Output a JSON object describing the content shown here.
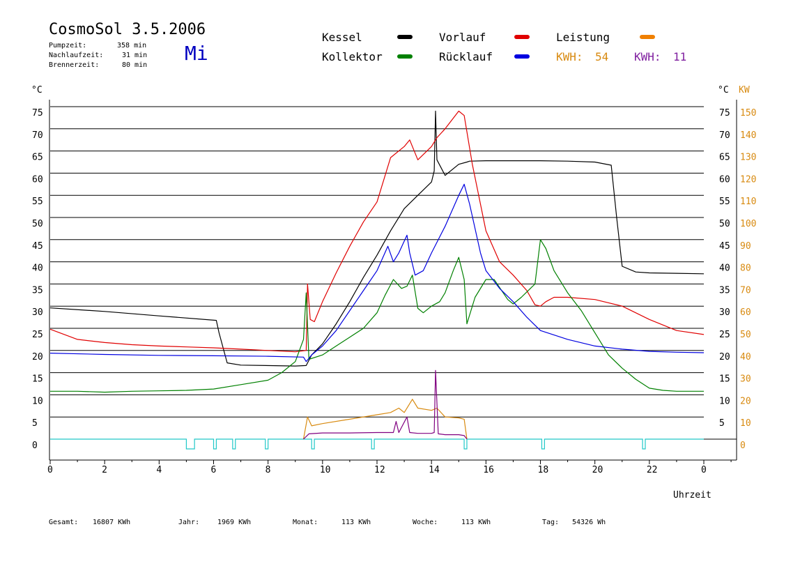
{
  "header": {
    "title": "CosmoSol 3.5.2006",
    "weekday": "Mi",
    "stats": [
      {
        "label": "Pumpzeit:",
        "value": "358 min"
      },
      {
        "label": "Nachlaufzeit:",
        "value": "31 min"
      },
      {
        "label": "Brennerzeit:",
        "value": "80 min"
      }
    ]
  },
  "legend": {
    "items": [
      {
        "label": "Kessel",
        "color": "#000000"
      },
      {
        "label": "Vorlauf",
        "color": "#e00000"
      },
      {
        "label": "Leistung",
        "color": "#f08000"
      },
      {
        "label": "Kollektor",
        "color": "#008000"
      },
      {
        "label": "Rücklauf",
        "color": "#0000e0"
      }
    ],
    "kwh": [
      {
        "label": "KWH:",
        "value": "54",
        "color": "#d88a10"
      },
      {
        "label": "KWH:",
        "value": "11",
        "color": "#8020a0"
      }
    ]
  },
  "footer": {
    "items": [
      {
        "label": "Gesamt:",
        "value": "16807 KWh"
      },
      {
        "label": "Jahr:",
        "value": "1969 KWh"
      },
      {
        "label": "Monat:",
        "value": "113 KWh"
      },
      {
        "label": "Woche:",
        "value": "113 KWh"
      },
      {
        "label": "Tag:",
        "value": "54326 Wh"
      }
    ]
  },
  "chart_data": {
    "type": "line",
    "xlabel": "Uhrzeit",
    "ylabel_left": "°C",
    "ylabel_right": "°C",
    "ylabel_right2": "KW",
    "xlim": [
      0,
      24
    ],
    "ylim": [
      0,
      75
    ],
    "grid": true,
    "x_ticks": [
      "0",
      "2",
      "4",
      "6",
      "8",
      "10",
      "12",
      "14",
      "16",
      "18",
      "20",
      "22",
      "0"
    ],
    "y_ticks_left": [
      "0",
      "5",
      "10",
      "15",
      "20",
      "25",
      "30",
      "35",
      "40",
      "45",
      "50",
      "55",
      "60",
      "65",
      "70",
      "75"
    ],
    "y_ticks_right": [
      "",
      "5",
      "10",
      "15",
      "20",
      "25",
      "30",
      "35",
      "40",
      "45",
      "50",
      "55",
      "60",
      "65",
      "70",
      "75"
    ],
    "y_ticks_kw": [
      "0",
      "10",
      "20",
      "30",
      "40",
      "50",
      "60",
      "70",
      "80",
      "90",
      "100",
      "110",
      "120",
      "130",
      "140",
      "150"
    ],
    "series": [
      {
        "name": "Kessel",
        "color": "#000000",
        "points": [
          [
            0,
            29.6
          ],
          [
            2,
            28.8
          ],
          [
            4,
            27.8
          ],
          [
            6.1,
            26.8
          ],
          [
            6.2,
            24
          ],
          [
            6.5,
            17.2
          ],
          [
            7,
            16.7
          ],
          [
            9,
            16.5
          ],
          [
            9.4,
            16.6
          ],
          [
            9.6,
            19
          ],
          [
            10,
            21.5
          ],
          [
            10.5,
            26
          ],
          [
            11,
            31
          ],
          [
            11.5,
            36.5
          ],
          [
            12,
            41.5
          ],
          [
            12.5,
            47
          ],
          [
            13,
            52
          ],
          [
            13.5,
            55
          ],
          [
            14,
            58
          ],
          [
            14.1,
            60.5
          ],
          [
            14.15,
            74
          ],
          [
            14.2,
            63
          ],
          [
            14.5,
            59.5
          ],
          [
            15,
            62
          ],
          [
            15.3,
            62.5
          ],
          [
            15.4,
            62.7
          ],
          [
            16,
            62.8
          ],
          [
            17,
            62.8
          ],
          [
            18,
            62.8
          ],
          [
            19,
            62.7
          ],
          [
            20,
            62.5
          ],
          [
            20.6,
            61.8
          ],
          [
            20.8,
            50
          ],
          [
            21,
            39
          ],
          [
            21.5,
            37.7
          ],
          [
            22,
            37.5
          ],
          [
            23,
            37.4
          ],
          [
            24,
            37.3
          ]
        ]
      },
      {
        "name": "Vorlauf",
        "color": "#e00000",
        "points": [
          [
            0,
            24.8
          ],
          [
            1,
            22.5
          ],
          [
            2,
            21.8
          ],
          [
            3,
            21.3
          ],
          [
            4,
            21
          ],
          [
            5,
            20.8
          ],
          [
            6,
            20.6
          ],
          [
            7,
            20.3
          ],
          [
            8,
            20
          ],
          [
            9,
            19.7
          ],
          [
            9.4,
            20
          ],
          [
            9.45,
            35
          ],
          [
            9.55,
            27
          ],
          [
            9.7,
            26.5
          ],
          [
            10,
            31
          ],
          [
            10.5,
            37.5
          ],
          [
            11,
            43.5
          ],
          [
            11.5,
            49
          ],
          [
            12,
            53.5
          ],
          [
            12.5,
            63.5
          ],
          [
            13,
            66
          ],
          [
            13.2,
            67.5
          ],
          [
            13.5,
            63
          ],
          [
            14,
            66
          ],
          [
            14.2,
            68
          ],
          [
            14.5,
            70
          ],
          [
            15,
            74
          ],
          [
            15.2,
            73
          ],
          [
            15.5,
            62
          ],
          [
            16,
            47
          ],
          [
            16.5,
            40
          ],
          [
            17,
            37
          ],
          [
            17.5,
            33.5
          ],
          [
            17.8,
            30.3
          ],
          [
            18,
            30
          ],
          [
            18.2,
            31
          ],
          [
            18.5,
            32
          ],
          [
            19,
            32
          ],
          [
            20,
            31.5
          ],
          [
            21,
            30
          ],
          [
            22,
            27
          ],
          [
            23,
            24.5
          ],
          [
            24,
            23.6
          ]
        ]
      },
      {
        "name": "Leistung",
        "color": "#d88a10",
        "points": [
          [
            9.3,
            0
          ],
          [
            9.45,
            5
          ],
          [
            9.6,
            3
          ],
          [
            10,
            3.5
          ],
          [
            11,
            4.5
          ],
          [
            12,
            5.5
          ],
          [
            12.5,
            6
          ],
          [
            12.8,
            7
          ],
          [
            13,
            6
          ],
          [
            13.3,
            9
          ],
          [
            13.5,
            7
          ],
          [
            14,
            6.5
          ],
          [
            14.2,
            7
          ],
          [
            14.5,
            5
          ],
          [
            15,
            4.8
          ],
          [
            15.2,
            4.5
          ],
          [
            15.3,
            0
          ]
        ]
      },
      {
        "name": "",
        "color": "#800080",
        "points": [
          [
            9.3,
            0
          ],
          [
            9.5,
            1.2
          ],
          [
            10,
            1.4
          ],
          [
            11,
            1.4
          ],
          [
            12,
            1.5
          ],
          [
            12.6,
            1.5
          ],
          [
            12.7,
            4
          ],
          [
            12.8,
            1.5
          ],
          [
            13.1,
            5
          ],
          [
            13.2,
            1.5
          ],
          [
            13.5,
            1.3
          ],
          [
            14,
            1.3
          ],
          [
            14.1,
            1.5
          ],
          [
            14.15,
            15.5
          ],
          [
            14.25,
            1.2
          ],
          [
            14.5,
            1
          ],
          [
            15,
            1
          ],
          [
            15.2,
            0.8
          ],
          [
            15.3,
            0
          ]
        ]
      },
      {
        "name": "Kollektor",
        "color": "#008000",
        "points": [
          [
            0,
            10.8
          ],
          [
            1,
            10.8
          ],
          [
            2,
            10.6
          ],
          [
            3,
            10.8
          ],
          [
            4,
            10.9
          ],
          [
            5,
            11
          ],
          [
            6,
            11.3
          ],
          [
            7,
            12.3
          ],
          [
            8,
            13.3
          ],
          [
            8.5,
            15
          ],
          [
            9,
            17.5
          ],
          [
            9.3,
            22.5
          ],
          [
            9.4,
            33
          ],
          [
            9.5,
            18
          ],
          [
            10,
            19
          ],
          [
            10.5,
            21
          ],
          [
            11,
            23
          ],
          [
            11.5,
            25
          ],
          [
            12,
            28.5
          ],
          [
            12.3,
            32.5
          ],
          [
            12.6,
            36
          ],
          [
            12.9,
            34
          ],
          [
            13.1,
            34.5
          ],
          [
            13.3,
            37
          ],
          [
            13.5,
            29.5
          ],
          [
            13.7,
            28.5
          ],
          [
            14,
            30
          ],
          [
            14.3,
            31
          ],
          [
            14.5,
            33
          ],
          [
            14.8,
            38
          ],
          [
            15,
            41
          ],
          [
            15.2,
            36
          ],
          [
            15.3,
            26
          ],
          [
            15.6,
            32
          ],
          [
            16,
            36
          ],
          [
            16.3,
            36
          ],
          [
            16.8,
            31.5
          ],
          [
            17,
            30.5
          ],
          [
            17.3,
            32
          ],
          [
            17.8,
            35
          ],
          [
            18,
            45
          ],
          [
            18.2,
            43
          ],
          [
            18.5,
            38
          ],
          [
            19,
            33
          ],
          [
            19.5,
            29
          ],
          [
            20,
            24
          ],
          [
            20.5,
            19
          ],
          [
            21,
            16
          ],
          [
            21.5,
            13.5
          ],
          [
            22,
            11.5
          ],
          [
            22.5,
            11
          ],
          [
            23,
            10.8
          ],
          [
            24,
            10.8
          ]
        ]
      },
      {
        "name": "Rücklauf",
        "color": "#0000e0",
        "points": [
          [
            0,
            19.4
          ],
          [
            2,
            19.1
          ],
          [
            4,
            18.9
          ],
          [
            6,
            18.8
          ],
          [
            8,
            18.7
          ],
          [
            9.3,
            18.5
          ],
          [
            9.4,
            17.5
          ],
          [
            9.6,
            19
          ],
          [
            10,
            21
          ],
          [
            10.5,
            24.5
          ],
          [
            11,
            29
          ],
          [
            11.5,
            33.5
          ],
          [
            12,
            38
          ],
          [
            12.4,
            43.5
          ],
          [
            12.6,
            40
          ],
          [
            12.8,
            42
          ],
          [
            13.1,
            46
          ],
          [
            13.2,
            42
          ],
          [
            13.4,
            37
          ],
          [
            13.7,
            38
          ],
          [
            14,
            42
          ],
          [
            14.5,
            48
          ],
          [
            15,
            55
          ],
          [
            15.2,
            57.5
          ],
          [
            15.4,
            53
          ],
          [
            15.8,
            42
          ],
          [
            16,
            38
          ],
          [
            16.5,
            34
          ],
          [
            17,
            31
          ],
          [
            17.5,
            27.5
          ],
          [
            18,
            24.5
          ],
          [
            19,
            22.5
          ],
          [
            20,
            21
          ],
          [
            21,
            20.3
          ],
          [
            22,
            19.8
          ],
          [
            23,
            19.6
          ],
          [
            24,
            19.5
          ]
        ]
      }
    ],
    "pulses": {
      "color": "#20c8c8",
      "baseline": 0,
      "intervals": [
        [
          5.0,
          5.3
        ],
        [
          6.0,
          6.1
        ],
        [
          6.7,
          6.8
        ],
        [
          7.9,
          8.0
        ],
        [
          9.6,
          9.7
        ],
        [
          11.8,
          11.9
        ],
        [
          15.2,
          15.3
        ],
        [
          18.05,
          18.15
        ],
        [
          21.75,
          21.85
        ]
      ]
    }
  }
}
